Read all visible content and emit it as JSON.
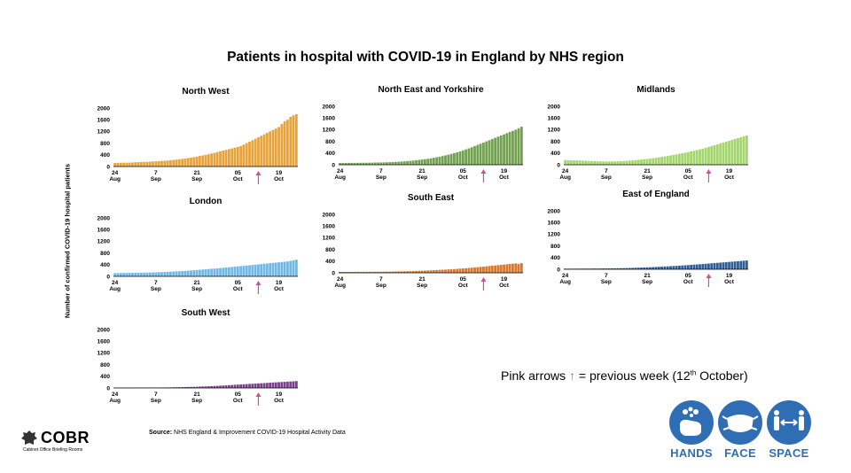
{
  "title": "Patients in hospital with COVID-19 in England by NHS region",
  "y_axis_label": "Number of confirmed COVID-19 hospital patients",
  "note": {
    "prefix": "Pink arrows",
    "arrow_glyph": "↑",
    "text": "= previous week (12",
    "sup": "th",
    "suffix": "October)"
  },
  "source": {
    "label": "Source:",
    "text": "NHS England & Improvement COVID-19 Hospital Activity Data"
  },
  "logo": {
    "title": "COBR",
    "subtitle": "Cabinet Office Briefing Rooms"
  },
  "campaign": {
    "hands": "HANDS",
    "face": "FACE",
    "space": "SPACE"
  },
  "colors": {
    "pink_arrow": "#e0498a",
    "campaign_blue": "#2f6eb5"
  },
  "chart_data": [
    {
      "type": "bar",
      "title": "North West",
      "color": "#e8a33a",
      "y_ticks": [
        0,
        400,
        800,
        1200,
        1600,
        2000
      ],
      "ylim": [
        0,
        2000
      ],
      "x_tick_labels": [
        [
          "24",
          "Aug"
        ],
        [
          "7",
          "Sep"
        ],
        [
          "21",
          "Sep"
        ],
        [
          "05",
          "Oct"
        ],
        [
          "19",
          "Oct"
        ]
      ],
      "x_tick_days": [
        0,
        14,
        28,
        42,
        56
      ],
      "arrow_day": 49,
      "values": [
        120,
        125,
        128,
        132,
        130,
        135,
        140,
        145,
        150,
        155,
        158,
        162,
        168,
        172,
        178,
        185,
        192,
        198,
        205,
        215,
        225,
        238,
        250,
        262,
        275,
        290,
        305,
        322,
        340,
        360,
        380,
        400,
        420,
        445,
        470,
        495,
        520,
        545,
        570,
        595,
        620,
        645,
        670,
        700,
        750,
        800,
        850,
        900,
        950,
        1000,
        1050,
        1100,
        1150,
        1200,
        1250,
        1300,
        1350,
        1450,
        1550,
        1600,
        1700,
        1750,
        1790
      ]
    },
    {
      "type": "bar",
      "title": "North East and Yorkshire",
      "color": "#72a24f",
      "y_ticks": [
        0,
        400,
        800,
        1200,
        1600,
        2000
      ],
      "ylim": [
        0,
        2000
      ],
      "x_tick_labels": [
        [
          "24",
          "Aug"
        ],
        [
          "7",
          "Sep"
        ],
        [
          "21",
          "Sep"
        ],
        [
          "05",
          "Oct"
        ],
        [
          "19",
          "Oct"
        ]
      ],
      "x_tick_days": [
        0,
        14,
        28,
        42,
        56
      ],
      "arrow_day": 49,
      "values": [
        60,
        60,
        62,
        62,
        64,
        64,
        65,
        66,
        67,
        68,
        70,
        72,
        74,
        76,
        78,
        80,
        84,
        88,
        92,
        98,
        104,
        110,
        118,
        126,
        134,
        144,
        154,
        165,
        178,
        190,
        205,
        220,
        238,
        255,
        275,
        298,
        320,
        345,
        370,
        398,
        425,
        455,
        490,
        525,
        560,
        600,
        640,
        680,
        720,
        760,
        800,
        840,
        880,
        920,
        960,
        1000,
        1040,
        1080,
        1120,
        1160,
        1200,
        1250,
        1300
      ]
    },
    {
      "type": "bar",
      "title": "Midlands",
      "color": "#a3d66c",
      "y_ticks": [
        0,
        400,
        800,
        1200,
        1600,
        2000
      ],
      "ylim": [
        0,
        2000
      ],
      "x_tick_labels": [
        [
          "24",
          "Aug"
        ],
        [
          "7",
          "Sep"
        ],
        [
          "21",
          "Sep"
        ],
        [
          "05",
          "Oct"
        ],
        [
          "19",
          "Oct"
        ]
      ],
      "x_tick_days": [
        0,
        14,
        28,
        42,
        56
      ],
      "arrow_day": 49,
      "values": [
        160,
        158,
        155,
        150,
        148,
        145,
        140,
        135,
        130,
        125,
        120,
        118,
        115,
        112,
        110,
        110,
        112,
        115,
        118,
        122,
        128,
        135,
        142,
        150,
        158,
        168,
        178,
        188,
        200,
        212,
        225,
        238,
        252,
        268,
        285,
        300,
        318,
        336,
        355,
        375,
        395,
        415,
        435,
        455,
        475,
        500,
        525,
        550,
        580,
        610,
        640,
        670,
        700,
        730,
        760,
        790,
        820,
        850,
        880,
        910,
        940,
        970,
        1000
      ]
    },
    {
      "type": "bar",
      "title": "London",
      "color": "#6fb8e6",
      "y_ticks": [
        0,
        400,
        800,
        1200,
        1600,
        2000
      ],
      "ylim": [
        0,
        2000
      ],
      "x_tick_labels": [
        [
          "24",
          "Aug"
        ],
        [
          "7",
          "Sep"
        ],
        [
          "21",
          "Sep"
        ],
        [
          "05",
          "Oct"
        ],
        [
          "19",
          "Oct"
        ]
      ],
      "x_tick_days": [
        0,
        14,
        28,
        42,
        56
      ],
      "arrow_day": 49,
      "values": [
        110,
        112,
        114,
        115,
        116,
        118,
        120,
        122,
        124,
        126,
        128,
        130,
        132,
        135,
        138,
        142,
        146,
        150,
        155,
        160,
        165,
        170,
        176,
        182,
        188,
        195,
        202,
        210,
        218,
        226,
        234,
        242,
        250,
        258,
        266,
        275,
        284,
        293,
        302,
        311,
        320,
        330,
        340,
        350,
        360,
        370,
        380,
        390,
        400,
        410,
        420,
        430,
        440,
        450,
        460,
        470,
        480,
        490,
        500,
        510,
        530,
        550,
        570
      ]
    },
    {
      "type": "bar",
      "title": "South East",
      "color": "#d8782a",
      "y_ticks": [
        0,
        400,
        800,
        1200,
        1600,
        2000
      ],
      "ylim": [
        0,
        2000
      ],
      "x_tick_labels": [
        [
          "24",
          "Aug"
        ],
        [
          "7",
          "Sep"
        ],
        [
          "21",
          "Sep"
        ],
        [
          "05",
          "Oct"
        ],
        [
          "19",
          "Oct"
        ]
      ],
      "x_tick_days": [
        0,
        14,
        28,
        42,
        56
      ],
      "arrow_day": 49,
      "values": [
        30,
        30,
        30,
        31,
        31,
        32,
        32,
        33,
        33,
        34,
        34,
        35,
        36,
        37,
        38,
        39,
        40,
        42,
        44,
        46,
        48,
        50,
        52,
        55,
        58,
        61,
        64,
        68,
        72,
        76,
        80,
        85,
        90,
        95,
        100,
        105,
        110,
        116,
        122,
        128,
        135,
        142,
        150,
        158,
        166,
        175,
        184,
        193,
        202,
        212,
        222,
        232,
        242,
        252,
        262,
        272,
        282,
        292,
        302,
        312,
        322,
        300,
        330
      ]
    },
    {
      "type": "bar",
      "title": "East of England",
      "color": "#2d5f96",
      "y_ticks": [
        0,
        400,
        800,
        1200,
        1600,
        2000
      ],
      "ylim": [
        0,
        2000
      ],
      "x_tick_labels": [
        [
          "24",
          "Aug"
        ],
        [
          "7",
          "Sep"
        ],
        [
          "21",
          "Sep"
        ],
        [
          "05",
          "Oct"
        ],
        [
          "19",
          "Oct"
        ]
      ],
      "x_tick_days": [
        0,
        14,
        28,
        42,
        56
      ],
      "arrow_day": 49,
      "values": [
        20,
        20,
        21,
        21,
        22,
        22,
        23,
        23,
        24,
        24,
        25,
        26,
        27,
        28,
        29,
        30,
        32,
        34,
        36,
        38,
        40,
        42,
        45,
        48,
        51,
        54,
        58,
        62,
        66,
        70,
        75,
        80,
        85,
        90,
        95,
        100,
        106,
        112,
        118,
        124,
        130,
        137,
        144,
        151,
        158,
        165,
        172,
        180,
        188,
        196,
        204,
        212,
        220,
        228,
        236,
        244,
        252,
        260,
        268,
        276,
        284,
        292,
        300
      ]
    },
    {
      "type": "bar",
      "title": "South West",
      "color": "#7b3f8f",
      "y_ticks": [
        0,
        400,
        800,
        1200,
        1600,
        2000
      ],
      "ylim": [
        0,
        2000
      ],
      "x_tick_labels": [
        [
          "24",
          "Aug"
        ],
        [
          "7",
          "Sep"
        ],
        [
          "21",
          "Sep"
        ],
        [
          "05",
          "Oct"
        ],
        [
          "19",
          "Oct"
        ]
      ],
      "x_tick_days": [
        0,
        14,
        28,
        42,
        56
      ],
      "arrow_day": 49,
      "values": [
        10,
        10,
        10,
        10,
        11,
        11,
        11,
        12,
        12,
        12,
        13,
        13,
        14,
        14,
        15,
        16,
        17,
        18,
        19,
        20,
        22,
        24,
        26,
        28,
        30,
        33,
        36,
        39,
        42,
        46,
        50,
        54,
        58,
        63,
        68,
        73,
        78,
        84,
        90,
        96,
        102,
        108,
        114,
        120,
        126,
        132,
        138,
        144,
        150,
        156,
        162,
        168,
        174,
        180,
        186,
        192,
        198,
        204,
        210,
        216,
        222,
        228,
        235
      ]
    }
  ]
}
